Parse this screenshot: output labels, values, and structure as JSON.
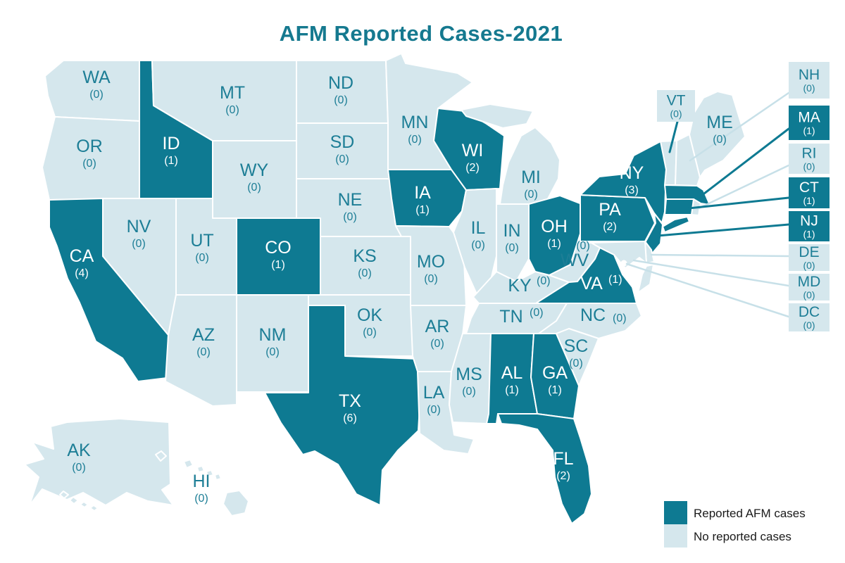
{
  "title": "AFM Reported Cases-2021",
  "colors": {
    "reported_fill": "#0E7A92",
    "no_case_fill": "#D5E7ED",
    "label_teal": "#1D7E96",
    "label_white": "#FFFFFF",
    "title_color": "#15798F",
    "legend_text_color": "#1A1A1A",
    "leader_dark": "#0E7A92",
    "leader_light": "#C7E0E8",
    "state_border": "#FFFFFF"
  },
  "legend": {
    "items": [
      {
        "label": "Reported AFM cases",
        "type": "reported"
      },
      {
        "label": "No reported cases",
        "type": "none"
      }
    ]
  },
  "states": [
    {
      "abbr": "WA",
      "cases": 0,
      "reported": false
    },
    {
      "abbr": "OR",
      "cases": 0,
      "reported": false
    },
    {
      "abbr": "CA",
      "cases": 4,
      "reported": true
    },
    {
      "abbr": "NV",
      "cases": 0,
      "reported": false
    },
    {
      "abbr": "ID",
      "cases": 1,
      "reported": true
    },
    {
      "abbr": "UT",
      "cases": 0,
      "reported": false
    },
    {
      "abbr": "AZ",
      "cases": 0,
      "reported": false
    },
    {
      "abbr": "MT",
      "cases": 0,
      "reported": false
    },
    {
      "abbr": "WY",
      "cases": 0,
      "reported": false
    },
    {
      "abbr": "CO",
      "cases": 1,
      "reported": true
    },
    {
      "abbr": "NM",
      "cases": 0,
      "reported": false
    },
    {
      "abbr": "ND",
      "cases": 0,
      "reported": false
    },
    {
      "abbr": "SD",
      "cases": 0,
      "reported": false
    },
    {
      "abbr": "NE",
      "cases": 0,
      "reported": false
    },
    {
      "abbr": "KS",
      "cases": 0,
      "reported": false
    },
    {
      "abbr": "OK",
      "cases": 0,
      "reported": false
    },
    {
      "abbr": "TX",
      "cases": 6,
      "reported": true
    },
    {
      "abbr": "MN",
      "cases": 0,
      "reported": false
    },
    {
      "abbr": "IA",
      "cases": 1,
      "reported": true
    },
    {
      "abbr": "MO",
      "cases": 0,
      "reported": false
    },
    {
      "abbr": "AR",
      "cases": 0,
      "reported": false
    },
    {
      "abbr": "LA",
      "cases": 0,
      "reported": false
    },
    {
      "abbr": "WI",
      "cases": 2,
      "reported": true
    },
    {
      "abbr": "IL",
      "cases": 0,
      "reported": false
    },
    {
      "abbr": "IN",
      "cases": 0,
      "reported": false
    },
    {
      "abbr": "MI",
      "cases": 0,
      "reported": false
    },
    {
      "abbr": "OH",
      "cases": 1,
      "reported": true
    },
    {
      "abbr": "KY",
      "cases": 0,
      "reported": false
    },
    {
      "abbr": "TN",
      "cases": 0,
      "reported": false
    },
    {
      "abbr": "MS",
      "cases": 0,
      "reported": false
    },
    {
      "abbr": "AL",
      "cases": 1,
      "reported": true
    },
    {
      "abbr": "GA",
      "cases": 1,
      "reported": true
    },
    {
      "abbr": "FL",
      "cases": 2,
      "reported": true
    },
    {
      "abbr": "WV",
      "cases": 0,
      "reported": false
    },
    {
      "abbr": "VA",
      "cases": 1,
      "reported": true
    },
    {
      "abbr": "NC",
      "cases": 0,
      "reported": false
    },
    {
      "abbr": "SC",
      "cases": 0,
      "reported": false
    },
    {
      "abbr": "PA",
      "cases": 2,
      "reported": true
    },
    {
      "abbr": "NY",
      "cases": 3,
      "reported": true
    },
    {
      "abbr": "NJ",
      "cases": 1,
      "reported": true
    },
    {
      "abbr": "DE",
      "cases": 0,
      "reported": false
    },
    {
      "abbr": "MD",
      "cases": 0,
      "reported": false
    },
    {
      "abbr": "DC",
      "cases": 0,
      "reported": false
    },
    {
      "abbr": "VT",
      "cases": 0,
      "reported": false
    },
    {
      "abbr": "NH",
      "cases": 0,
      "reported": false
    },
    {
      "abbr": "MA",
      "cases": 1,
      "reported": true
    },
    {
      "abbr": "RI",
      "cases": 0,
      "reported": false
    },
    {
      "abbr": "CT",
      "cases": 1,
      "reported": true
    },
    {
      "abbr": "ME",
      "cases": 0,
      "reported": false
    },
    {
      "abbr": "AK",
      "cases": 0,
      "reported": false
    },
    {
      "abbr": "HI",
      "cases": 0,
      "reported": false
    }
  ],
  "chart_data": {
    "type": "heatmap",
    "subtype": "us-choropleth",
    "title": "AFM Reported Cases-2021",
    "categories": [
      "WA",
      "OR",
      "CA",
      "NV",
      "ID",
      "UT",
      "AZ",
      "MT",
      "WY",
      "CO",
      "NM",
      "ND",
      "SD",
      "NE",
      "KS",
      "OK",
      "TX",
      "MN",
      "IA",
      "MO",
      "AR",
      "LA",
      "WI",
      "IL",
      "IN",
      "MI",
      "OH",
      "KY",
      "TN",
      "MS",
      "AL",
      "GA",
      "FL",
      "WV",
      "VA",
      "NC",
      "SC",
      "PA",
      "NY",
      "NJ",
      "DE",
      "MD",
      "DC",
      "VT",
      "NH",
      "MA",
      "RI",
      "CT",
      "ME",
      "AK",
      "HI"
    ],
    "values": [
      0,
      0,
      4,
      0,
      1,
      0,
      0,
      0,
      0,
      1,
      0,
      0,
      0,
      0,
      0,
      0,
      6,
      0,
      1,
      0,
      0,
      0,
      2,
      0,
      0,
      0,
      1,
      0,
      0,
      0,
      1,
      1,
      2,
      0,
      1,
      0,
      0,
      2,
      3,
      1,
      0,
      0,
      0,
      0,
      0,
      1,
      0,
      1,
      0,
      0,
      0
    ],
    "legend": [
      "Reported AFM cases",
      "No reported cases"
    ],
    "legend_position": "bottom-right"
  }
}
